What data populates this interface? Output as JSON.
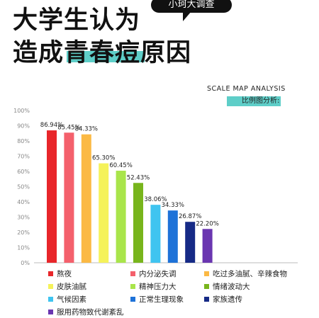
{
  "header": {
    "title_line1": "大学生认为",
    "title_line2": "造成青春痘原因",
    "bubble": "小珂大调查",
    "scale_title": "SCALE MAP ANALYSIS",
    "scale_subtitle": "比例图分析:",
    "accent_color": "#5ecec8"
  },
  "chart_data": {
    "type": "bar",
    "categories": [
      "熬夜",
      "内分泌失调",
      "吃过多油腻、辛辣食物",
      "皮肤油腻",
      "精神压力大",
      "情绪波动大",
      "气候因素",
      "正常生理现象",
      "家族遗传",
      "服用药物致代谢紊乱"
    ],
    "values": [
      86.94,
      85.45,
      84.33,
      65.3,
      60.45,
      52.43,
      38.06,
      34.33,
      26.87,
      22.2
    ],
    "value_labels": [
      "86.94%",
      "85.45%",
      "84.33%",
      "65.30%",
      "60.45%",
      "52.43%",
      "38.06%",
      "34.33%",
      "26.87%",
      "22.20%"
    ],
    "colors": [
      "#e8262a",
      "#f4606c",
      "#fbb944",
      "#f5f25a",
      "#a9e54b",
      "#78b51c",
      "#3fc4f0",
      "#1e72d8",
      "#162a86",
      "#6a36b0"
    ],
    "ylim": [
      0,
      100
    ],
    "yticks": [
      "0%",
      "10%",
      "20%",
      "30%",
      "40%",
      "50%",
      "60%",
      "70%",
      "80%",
      "90%",
      "100%"
    ],
    "grid": false,
    "legend_position": "bottom",
    "xlabel": "",
    "ylabel": ""
  }
}
